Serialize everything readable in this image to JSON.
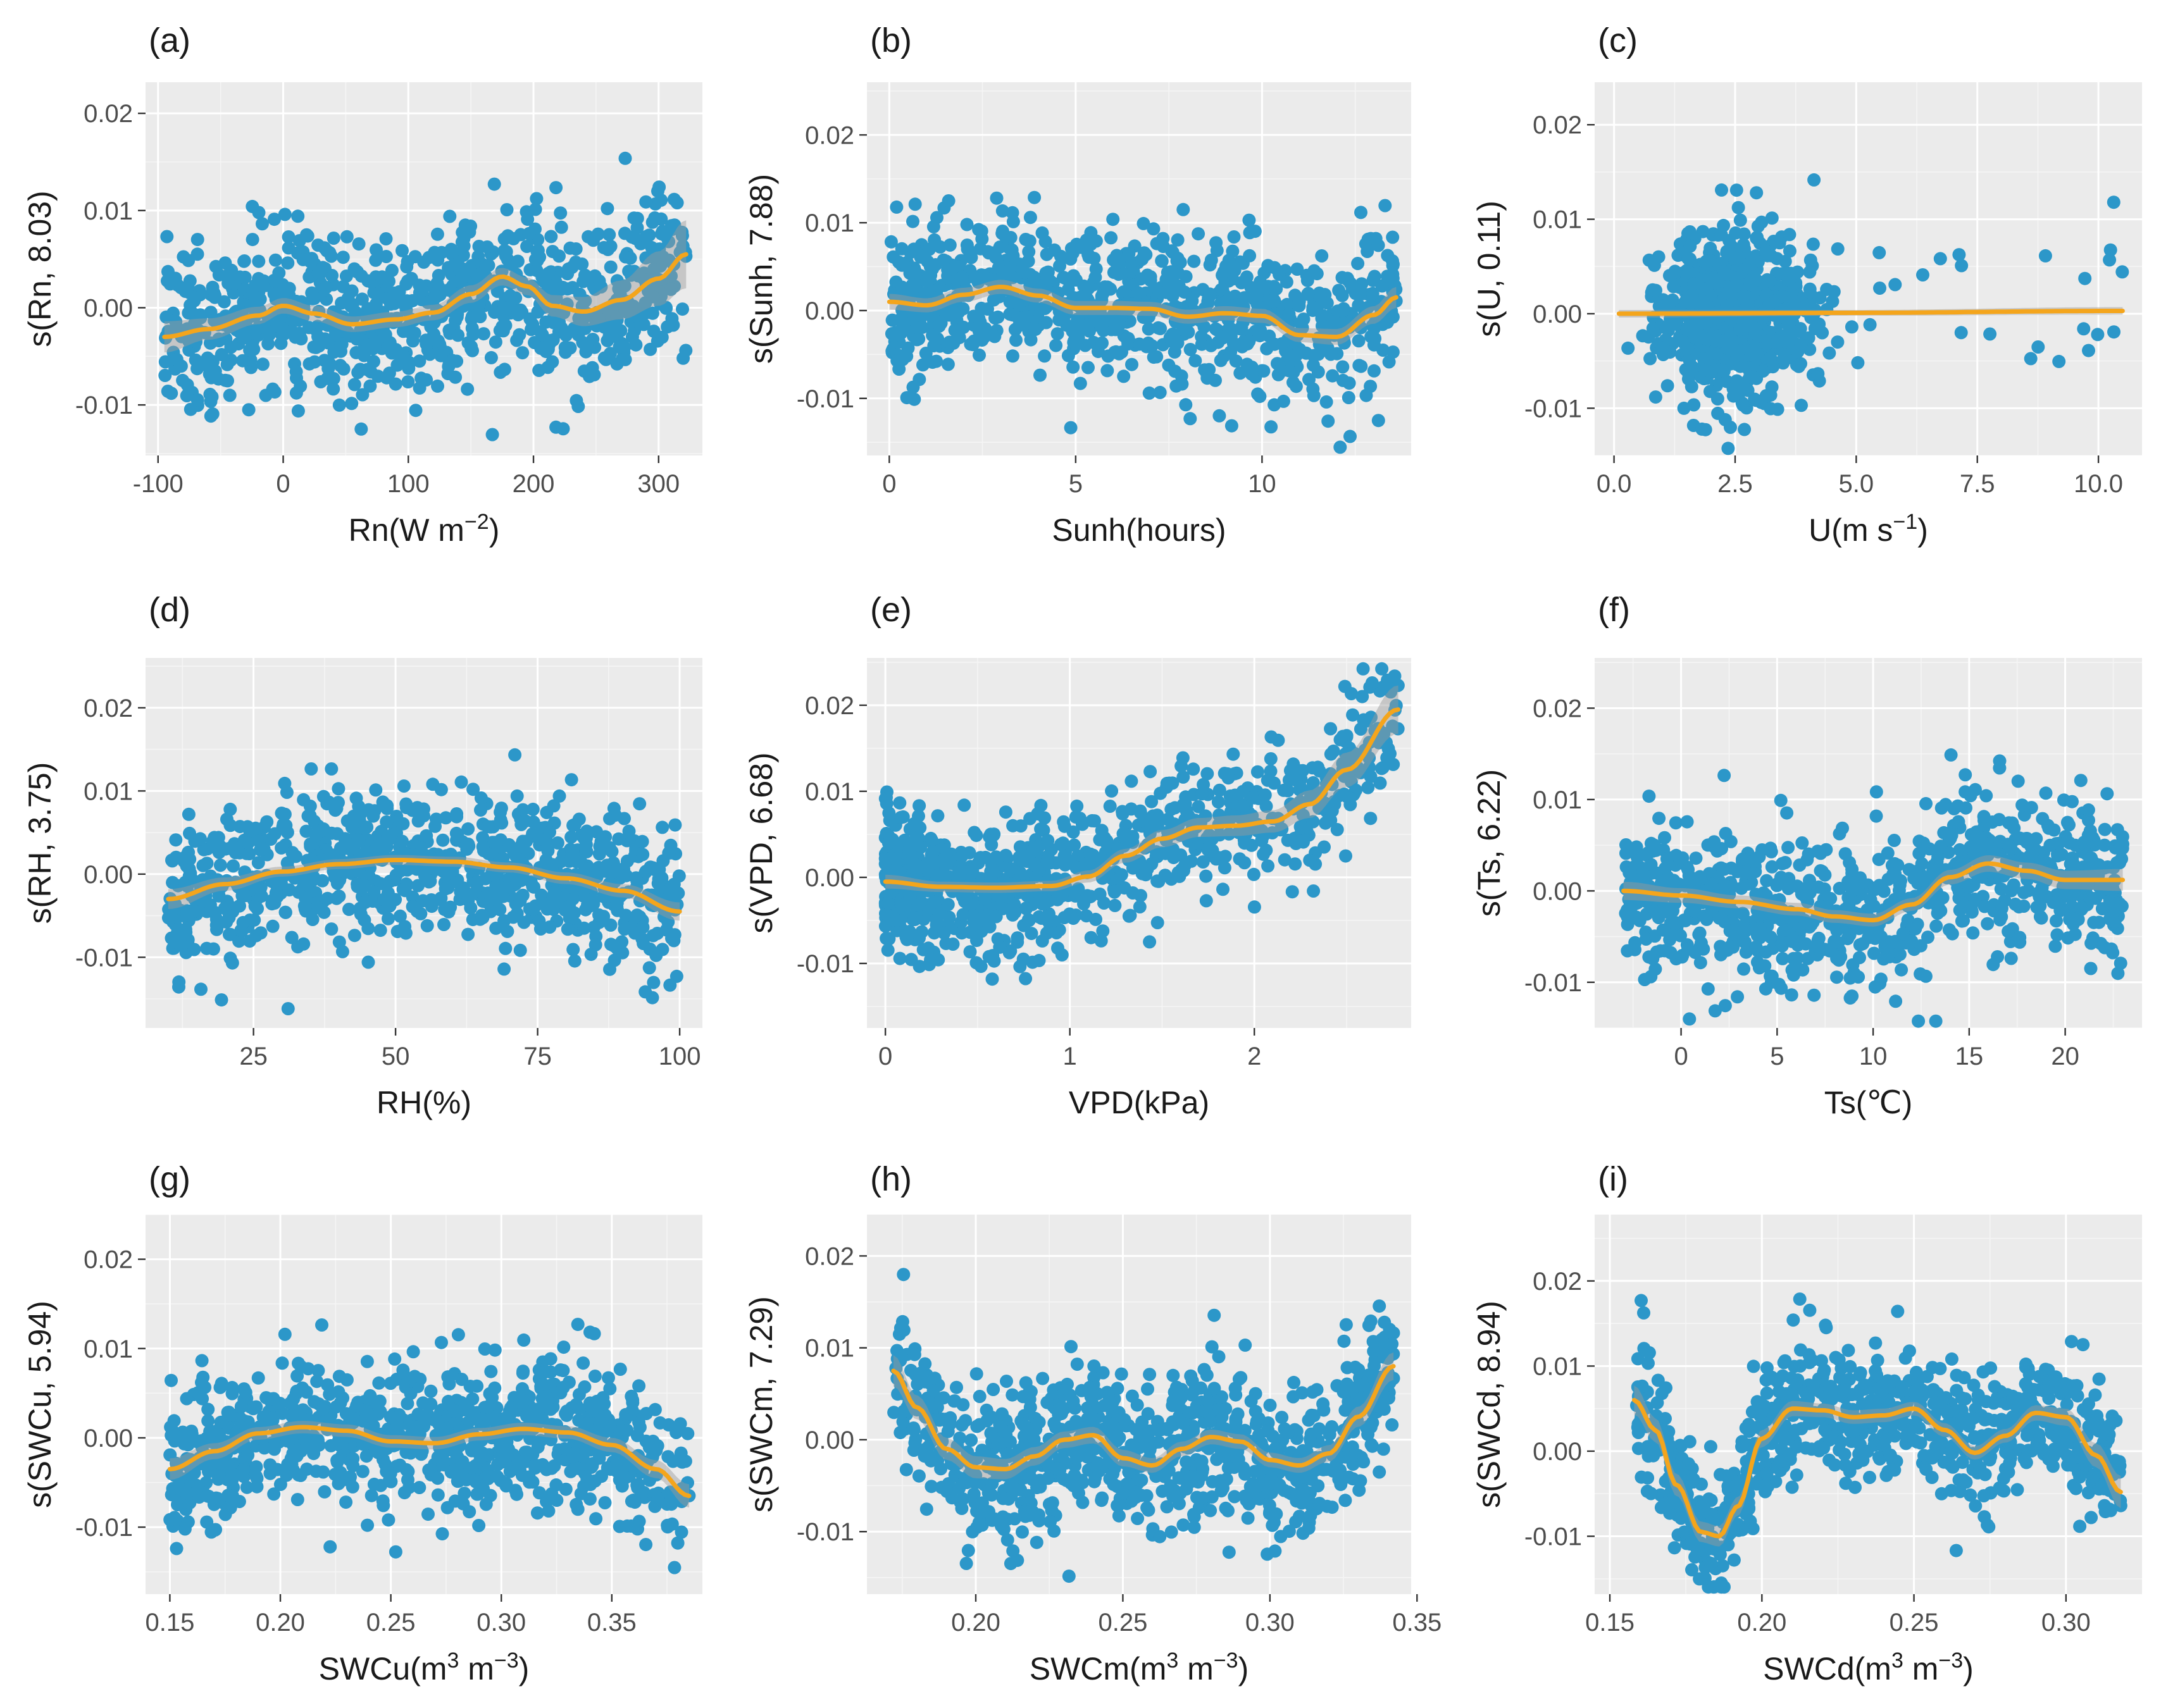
{
  "colors": {
    "points": "#2c97c9",
    "fit": "#f4a51c",
    "band": "#9a9a9a",
    "panel": "#ebebeb"
  },
  "chart_data": [
    {
      "id": "a",
      "tag": "(a)",
      "type": "scatter",
      "ylabel": "s(Rn,  8.03)",
      "xlabel": {
        "base": "Rn(W m",
        "sup": "−2",
        "tail": ")"
      },
      "xlim": [
        -110,
        335
      ],
      "ylim": [
        -0.0152,
        0.0232
      ],
      "xticks": [
        -100,
        0,
        100,
        200,
        300
      ],
      "xticklabels": [
        "-100",
        "0",
        "100",
        "200",
        "300"
      ],
      "yticks": [
        -0.01,
        0.0,
        0.01,
        0.02
      ],
      "yticklabels": [
        "-0.01",
        "0.00",
        "0.01",
        "0.02"
      ],
      "x_range": [
        -95,
        322
      ],
      "n_points": 900,
      "noise_sd": 0.0042,
      "seed": 11,
      "smooth": {
        "x": [
          -95,
          -60,
          -20,
          0,
          25,
          55,
          90,
          120,
          150,
          175,
          195,
          215,
          240,
          270,
          300,
          322
        ],
        "y": [
          -0.003,
          -0.0022,
          -0.0008,
          0.0002,
          -0.0006,
          -0.0017,
          -0.0012,
          -0.0005,
          0.0014,
          0.0032,
          0.0022,
          0.0002,
          -0.0004,
          0.0008,
          0.003,
          0.0055
        ],
        "se": [
          0.0016,
          0.0011,
          0.0009,
          0.0008,
          0.0008,
          0.0008,
          0.0008,
          0.0008,
          0.0009,
          0.0009,
          0.0009,
          0.0011,
          0.0015,
          0.002,
          0.0028,
          0.0035
        ]
      }
    },
    {
      "id": "b",
      "tag": "(b)",
      "type": "scatter",
      "ylabel": "s(Sunh,  7.88)",
      "xlabel": {
        "base": "Sunh(hours)",
        "sup": "",
        "tail": ""
      },
      "xlim": [
        -0.6,
        14.0
      ],
      "ylim": [
        -0.0165,
        0.026
      ],
      "xticks": [
        0,
        5,
        10
      ],
      "xticklabels": [
        "0",
        "5",
        "10"
      ],
      "yticks": [
        -0.01,
        0.0,
        0.01,
        0.02
      ],
      "yticklabels": [
        "-0.01",
        "0.00",
        "0.01",
        "0.02"
      ],
      "x_range": [
        0,
        13.6
      ],
      "n_points": 900,
      "noise_sd": 0.0042,
      "seed": 23,
      "smooth": {
        "x": [
          0,
          1,
          2,
          3,
          4,
          5,
          6,
          7,
          8,
          9,
          10,
          11,
          12,
          13,
          13.6
        ],
        "y": [
          0.001,
          0.0006,
          0.0018,
          0.0027,
          0.0017,
          0.0003,
          0.0003,
          0.0002,
          -0.0007,
          -0.0003,
          -0.0006,
          -0.0028,
          -0.003,
          -0.0005,
          0.0015
        ],
        "se": [
          0.0009,
          0.0008,
          0.0008,
          0.0008,
          0.0008,
          0.0008,
          0.0008,
          0.0008,
          0.0008,
          0.0008,
          0.0008,
          0.0008,
          0.0009,
          0.001,
          0.0012
        ]
      }
    },
    {
      "id": "c",
      "tag": "(c)",
      "type": "scatter",
      "ylabel": "s(U,  0.11)",
      "xlabel": {
        "base": "U(m s",
        "sup": "−1",
        "tail": ")"
      },
      "xlim": [
        -0.4,
        10.9
      ],
      "ylim": [
        -0.015,
        0.0245
      ],
      "xticks": [
        0,
        2.5,
        5,
        7.5,
        10
      ],
      "xticklabels": [
        "0.0",
        "2.5",
        "5.0",
        "7.5",
        "10.0"
      ],
      "yticks": [
        -0.01,
        0.0,
        0.01,
        0.02
      ],
      "yticklabels": [
        "-0.01",
        "0.00",
        "0.01",
        "0.02"
      ],
      "x_range": [
        0.1,
        10.5
      ],
      "x_skew": 2.4,
      "x_mode": 2.3,
      "x_spread": 0.8,
      "n_points": 900,
      "noise_sd": 0.0042,
      "seed": 37,
      "smooth": {
        "x": [
          0.1,
          5,
          10.5
        ],
        "y": [
          0.0,
          0.0001,
          0.0003
        ],
        "se": [
          0.0004,
          0.0003,
          0.0004
        ]
      }
    },
    {
      "id": "d",
      "tag": "(d)",
      "type": "scatter",
      "ylabel": "s(RH,  3.75)",
      "xlabel": {
        "base": "RH(%)",
        "sup": "",
        "tail": ""
      },
      "xlim": [
        6,
        104
      ],
      "ylim": [
        -0.0185,
        0.026
      ],
      "xticks": [
        25,
        50,
        75,
        100
      ],
      "xticklabels": [
        "25",
        "50",
        "75",
        "100"
      ],
      "yticks": [
        -0.01,
        0.0,
        0.01,
        0.02
      ],
      "yticklabels": [
        "-0.01",
        "0.00",
        "0.01",
        "0.02"
      ],
      "x_range": [
        10,
        100
      ],
      "n_points": 900,
      "noise_sd": 0.0045,
      "seed": 41,
      "smooth": {
        "x": [
          10,
          20,
          30,
          40,
          50,
          60,
          70,
          80,
          90,
          100
        ],
        "y": [
          -0.003,
          -0.0012,
          0.0003,
          0.0012,
          0.0017,
          0.0015,
          0.0008,
          -0.0005,
          -0.002,
          -0.0045
        ],
        "se": [
          0.0012,
          0.0008,
          0.0006,
          0.0006,
          0.0006,
          0.0006,
          0.0006,
          0.0007,
          0.0008,
          0.0011
        ]
      }
    },
    {
      "id": "e",
      "tag": "(e)",
      "type": "scatter",
      "ylabel": "s(VPD,  6.68)",
      "xlabel": {
        "base": "VPD(kPa)",
        "sup": "",
        "tail": ""
      },
      "xlim": [
        -0.1,
        2.85
      ],
      "ylim": [
        -0.0175,
        0.0255
      ],
      "xticks": [
        0,
        1,
        2
      ],
      "xticklabels": [
        "0",
        "1",
        "2"
      ],
      "yticks": [
        -0.01,
        0.0,
        0.01,
        0.02
      ],
      "yticklabels": [
        "-0.01",
        "0.00",
        "0.01",
        "0.02"
      ],
      "x_range": [
        0.0,
        2.78
      ],
      "x_skew": 1.6,
      "n_points": 900,
      "noise_sd": 0.004,
      "seed": 53,
      "smooth": {
        "x": [
          0,
          0.3,
          0.6,
          0.9,
          1.1,
          1.3,
          1.5,
          1.7,
          1.9,
          2.1,
          2.3,
          2.5,
          2.78
        ],
        "y": [
          -0.0005,
          -0.0011,
          -0.0012,
          -0.001,
          0.0001,
          0.0025,
          0.0045,
          0.0058,
          0.006,
          0.0065,
          0.0085,
          0.0125,
          0.0195
        ],
        "se": [
          0.0008,
          0.0006,
          0.0006,
          0.0006,
          0.0007,
          0.0008,
          0.001,
          0.0011,
          0.0012,
          0.0013,
          0.0016,
          0.002,
          0.0028
        ]
      }
    },
    {
      "id": "f",
      "tag": "(f)",
      "type": "scatter",
      "ylabel": "s(Ts,  6.22)",
      "xlabel": {
        "base": "Ts(℃)",
        "sup": "",
        "tail": ""
      },
      "xlim": [
        -4.5,
        24.0
      ],
      "ylim": [
        -0.015,
        0.0255
      ],
      "xticks": [
        0,
        5,
        10,
        15,
        20
      ],
      "xticklabels": [
        "0",
        "5",
        "10",
        "15",
        "20"
      ],
      "yticks": [
        -0.01,
        0.0,
        0.01,
        0.02
      ],
      "yticklabels": [
        "-0.01",
        "0.00",
        "0.01",
        "0.02"
      ],
      "x_range": [
        -3,
        23
      ],
      "n_points": 900,
      "noise_sd": 0.0042,
      "seed": 67,
      "smooth": {
        "x": [
          -3,
          0,
          3,
          6,
          8,
          10,
          12,
          14,
          16,
          18,
          20,
          23
        ],
        "y": [
          0.0,
          -0.0005,
          -0.0012,
          -0.002,
          -0.0028,
          -0.0032,
          -0.0015,
          0.0015,
          0.003,
          0.0022,
          0.0012,
          0.0012
        ],
        "se": [
          0.001,
          0.0008,
          0.0007,
          0.0007,
          0.0007,
          0.0007,
          0.0007,
          0.0008,
          0.0009,
          0.0009,
          0.001,
          0.0012
        ]
      }
    },
    {
      "id": "g",
      "tag": "(g)",
      "type": "scatter",
      "ylabel": "s(SWCu,  5.94)",
      "xlabel": {
        "base": "SWCu(m",
        "sup": "3",
        "mid": " m",
        "sup2": "−3",
        "tail": ")"
      },
      "xlim": [
        0.139,
        0.391
      ],
      "ylim": [
        -0.0175,
        0.025
      ],
      "xticks": [
        0.15,
        0.2,
        0.25,
        0.3,
        0.35
      ],
      "xticklabels": [
        "0.15",
        "0.20",
        "0.25",
        "0.30",
        "0.35"
      ],
      "yticks": [
        -0.01,
        0.0,
        0.01,
        0.02
      ],
      "yticklabels": [
        "-0.01",
        "0.00",
        "0.01",
        "0.02"
      ],
      "x_range": [
        0.15,
        0.385
      ],
      "n_points": 900,
      "noise_sd": 0.0042,
      "seed": 71,
      "smooth": {
        "x": [
          0.15,
          0.17,
          0.19,
          0.21,
          0.23,
          0.25,
          0.27,
          0.29,
          0.31,
          0.33,
          0.35,
          0.37,
          0.385
        ],
        "y": [
          -0.0035,
          -0.0015,
          0.0005,
          0.0012,
          0.0008,
          -0.0004,
          -0.0006,
          0.0004,
          0.001,
          0.0006,
          -0.0008,
          -0.0035,
          -0.0065
        ],
        "se": [
          0.0012,
          0.0009,
          0.0007,
          0.0007,
          0.0007,
          0.0007,
          0.0007,
          0.0007,
          0.0007,
          0.0007,
          0.0008,
          0.001,
          0.0013
        ]
      }
    },
    {
      "id": "h",
      "tag": "(h)",
      "type": "scatter",
      "ylabel": "s(SWCm,  7.29)",
      "xlabel": {
        "base": "SWCm(m",
        "sup": "3",
        "mid": " m",
        "sup2": "−3",
        "tail": ")"
      },
      "xlim": [
        0.163,
        0.348
      ],
      "ylim": [
        -0.0168,
        0.0245
      ],
      "xticks": [
        0.2,
        0.25,
        0.3,
        0.35
      ],
      "xticklabels": [
        "0.20",
        "0.25",
        "0.30",
        "0.35"
      ],
      "yticks": [
        -0.01,
        0.0,
        0.01,
        0.02
      ],
      "yticklabels": [
        "-0.01",
        "0.00",
        "0.01",
        "0.02"
      ],
      "x_range": [
        0.172,
        0.342
      ],
      "n_points": 900,
      "noise_sd": 0.0042,
      "seed": 83,
      "smooth": {
        "x": [
          0.172,
          0.18,
          0.19,
          0.2,
          0.21,
          0.22,
          0.23,
          0.24,
          0.25,
          0.26,
          0.27,
          0.28,
          0.29,
          0.3,
          0.31,
          0.32,
          0.33,
          0.342
        ],
        "y": [
          0.0075,
          0.0035,
          -0.001,
          -0.003,
          -0.0032,
          -0.0018,
          0.0,
          0.0005,
          -0.002,
          -0.0028,
          -0.001,
          0.0003,
          -0.0002,
          -0.0022,
          -0.0028,
          -0.0015,
          0.0025,
          0.008
        ],
        "se": [
          0.0017,
          0.0013,
          0.0012,
          0.0012,
          0.0011,
          0.001,
          0.0009,
          0.0009,
          0.0009,
          0.0008,
          0.0008,
          0.0008,
          0.0008,
          0.0008,
          0.0008,
          0.0009,
          0.0011,
          0.0015
        ]
      }
    },
    {
      "id": "i",
      "tag": "(i)",
      "type": "scatter",
      "ylabel": "s(SWCd,  8.94)",
      "xlabel": {
        "base": "SWCd(m",
        "sup": "3",
        "mid": " m",
        "sup2": "−3",
        "tail": ")"
      },
      "xlim": [
        0.145,
        0.325
      ],
      "ylim": [
        -0.0168,
        0.0278
      ],
      "xticks": [
        0.15,
        0.2,
        0.25,
        0.3
      ],
      "xticklabels": [
        "0.15",
        "0.20",
        "0.25",
        "0.30"
      ],
      "yticks": [
        -0.01,
        0.0,
        0.01,
        0.02
      ],
      "yticklabels": [
        "-0.01",
        "0.00",
        "0.01",
        "0.02"
      ],
      "x_range": [
        0.158,
        0.318
      ],
      "n_points": 900,
      "noise_sd": 0.0038,
      "seed": 97,
      "smooth": {
        "x": [
          0.158,
          0.165,
          0.172,
          0.18,
          0.186,
          0.192,
          0.2,
          0.21,
          0.22,
          0.23,
          0.24,
          0.25,
          0.26,
          0.27,
          0.28,
          0.29,
          0.3,
          0.31,
          0.318
        ],
        "y": [
          0.006,
          0.0025,
          -0.004,
          -0.0095,
          -0.01,
          -0.0065,
          0.0015,
          0.005,
          0.0048,
          0.004,
          0.0042,
          0.005,
          0.0025,
          -0.0002,
          0.0018,
          0.0045,
          0.004,
          -0.0005,
          -0.0048
        ],
        "se": [
          0.0017,
          0.0014,
          0.0013,
          0.0012,
          0.0012,
          0.0011,
          0.001,
          0.0009,
          0.0008,
          0.0008,
          0.0008,
          0.0008,
          0.0008,
          0.0008,
          0.0008,
          0.0009,
          0.001,
          0.0014,
          0.0019
        ]
      }
    }
  ]
}
